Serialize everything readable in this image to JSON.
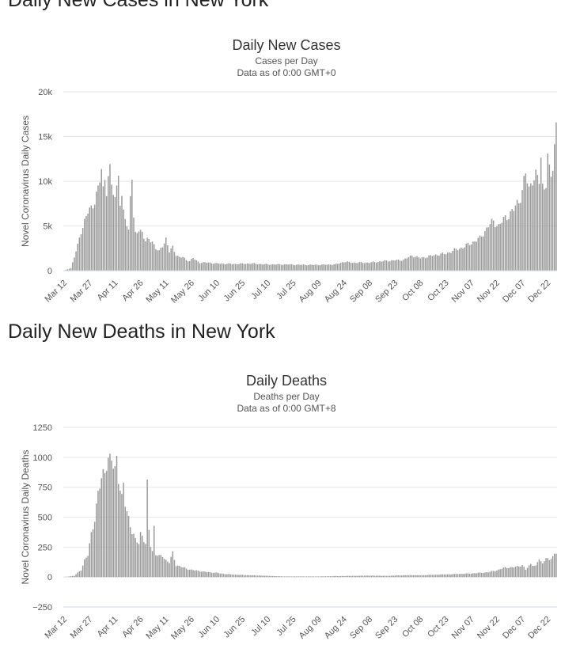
{
  "sections": [
    {
      "heading": "Daily New Cases in New York"
    },
    {
      "heading": "Daily New Deaths in New York"
    }
  ],
  "chart_data": [
    {
      "type": "bar",
      "title": "Daily New Cases",
      "subtitle_1": "Cases per Day",
      "subtitle_2": "Data as of 0:00 GMT+0",
      "ylabel": "Novel Coronavirus Daily Cases",
      "ylim": [
        0,
        20000
      ],
      "yticks": [
        0,
        5000,
        10000,
        15000,
        20000
      ],
      "ytick_labels": [
        "0",
        "5k",
        "10k",
        "15k",
        "20k"
      ],
      "xtick_labels": [
        "Mar 12",
        "Mar 27",
        "Apr 11",
        "Apr 26",
        "May 11",
        "May 26",
        "Jun 10",
        "Jun 25",
        "Jul 10",
        "Jul 25",
        "Aug 09",
        "Aug 24",
        "Sep 08",
        "Sep 23",
        "Oct 08",
        "Oct 23",
        "Nov 07",
        "Nov 22",
        "Dec 07",
        "Dec 22"
      ],
      "x_start": "Mar 12",
      "num_days": 291,
      "series_anchors": [
        [
          0,
          20
        ],
        [
          4,
          300
        ],
        [
          6,
          1500
        ],
        [
          8,
          2800
        ],
        [
          10,
          4500
        ],
        [
          12,
          5500
        ],
        [
          14,
          6500
        ],
        [
          16,
          7000
        ],
        [
          18,
          8000
        ],
        [
          20,
          9000
        ],
        [
          21,
          10000
        ],
        [
          22,
          11300
        ],
        [
          23,
          9000
        ],
        [
          24,
          10500
        ],
        [
          25,
          9200
        ],
        [
          26,
          10500
        ],
        [
          27,
          11000
        ],
        [
          28,
          9500
        ],
        [
          29,
          8700
        ],
        [
          30,
          8000
        ],
        [
          31,
          9500
        ],
        [
          32,
          11600
        ],
        [
          33,
          7500
        ],
        [
          34,
          7700
        ],
        [
          35,
          6500
        ],
        [
          36,
          6000
        ],
        [
          37,
          5000
        ],
        [
          38,
          4500
        ],
        [
          39,
          8800
        ],
        [
          40,
          10800
        ],
        [
          41,
          5600
        ],
        [
          42,
          4000
        ],
        [
          44,
          4600
        ],
        [
          46,
          4400
        ],
        [
          48,
          3200
        ],
        [
          50,
          3500
        ],
        [
          52,
          3300
        ],
        [
          54,
          2500
        ],
        [
          56,
          2100
        ],
        [
          58,
          2800
        ],
        [
          60,
          3600
        ],
        [
          62,
          2100
        ],
        [
          64,
          2600
        ],
        [
          66,
          1800
        ],
        [
          68,
          1500
        ],
        [
          70,
          1500
        ],
        [
          72,
          1200
        ],
        [
          74,
          1100
        ],
        [
          76,
          1400
        ],
        [
          78,
          1100
        ],
        [
          80,
          900
        ],
        [
          85,
          900
        ],
        [
          90,
          800
        ],
        [
          100,
          750
        ],
        [
          110,
          800
        ],
        [
          120,
          700
        ],
        [
          130,
          700
        ],
        [
          140,
          650
        ],
        [
          150,
          650
        ],
        [
          160,
          700
        ],
        [
          165,
          1000
        ],
        [
          170,
          900
        ],
        [
          180,
          900
        ],
        [
          190,
          1100
        ],
        [
          200,
          1200
        ],
        [
          205,
          1700
        ],
        [
          210,
          1400
        ],
        [
          215,
          1600
        ],
        [
          220,
          1800
        ],
        [
          225,
          1900
        ],
        [
          230,
          2300
        ],
        [
          235,
          2600
        ],
        [
          240,
          3100
        ],
        [
          245,
          3600
        ],
        [
          250,
          5000
        ],
        [
          253,
          5500
        ],
        [
          256,
          5000
        ],
        [
          260,
          5900
        ],
        [
          265,
          6800
        ],
        [
          268,
          7800
        ],
        [
          270,
          9000
        ],
        [
          272,
          10800
        ],
        [
          274,
          9000
        ],
        [
          276,
          10500
        ],
        [
          278,
          10500
        ],
        [
          280,
          10000
        ],
        [
          281,
          12500
        ],
        [
          282,
          9500
        ],
        [
          284,
          9900
        ],
        [
          285,
          12400
        ],
        [
          286,
          11000
        ],
        [
          287,
          10700
        ],
        [
          288,
          11500
        ],
        [
          289,
          13800
        ],
        [
          290,
          17000
        ]
      ]
    },
    {
      "type": "bar",
      "title": "Daily Deaths",
      "subtitle_1": "Deaths per Day",
      "subtitle_2": "Data as of 0:00 GMT+8",
      "ylabel": "Novel Coronavirus Daily Deaths",
      "ylim": [
        -250,
        1250
      ],
      "yticks": [
        -250,
        0,
        250,
        500,
        750,
        1000,
        1250
      ],
      "ytick_labels": [
        "−250",
        "0",
        "250",
        "500",
        "750",
        "1000",
        "1250"
      ],
      "xtick_labels": [
        "Mar 12",
        "Mar 27",
        "Apr 11",
        "Apr 26",
        "May 11",
        "May 26",
        "Jun 10",
        "Jun 25",
        "Jul 10",
        "Jul 25",
        "Aug 09",
        "Aug 24",
        "Sep 08",
        "Sep 23",
        "Oct 08",
        "Oct 23",
        "Nov 07",
        "Nov 22",
        "Dec 07",
        "Dec 22"
      ],
      "x_start": "Mar 12",
      "num_days": 291,
      "series_anchors": [
        [
          0,
          0
        ],
        [
          6,
          10
        ],
        [
          10,
          60
        ],
        [
          12,
          140
        ],
        [
          14,
          180
        ],
        [
          16,
          360
        ],
        [
          18,
          500
        ],
        [
          20,
          680
        ],
        [
          22,
          820
        ],
        [
          24,
          900
        ],
        [
          25,
          980
        ],
        [
          26,
          990
        ],
        [
          27,
          950
        ],
        [
          28,
          960
        ],
        [
          30,
          900
        ],
        [
          31,
          1010
        ],
        [
          32,
          850
        ],
        [
          34,
          640
        ],
        [
          35,
          750
        ],
        [
          36,
          610
        ],
        [
          38,
          500
        ],
        [
          40,
          380
        ],
        [
          42,
          300
        ],
        [
          44,
          290
        ],
        [
          45,
          370
        ],
        [
          46,
          350
        ],
        [
          47,
          310
        ],
        [
          48,
          270
        ],
        [
          49,
          740
        ],
        [
          50,
          390
        ],
        [
          51,
          270
        ],
        [
          52,
          220
        ],
        [
          53,
          420
        ],
        [
          54,
          190
        ],
        [
          56,
          170
        ],
        [
          58,
          180
        ],
        [
          60,
          140
        ],
        [
          62,
          120
        ],
        [
          64,
          200
        ],
        [
          66,
          100
        ],
        [
          70,
          80
        ],
        [
          75,
          60
        ],
        [
          80,
          50
        ],
        [
          85,
          40
        ],
        [
          90,
          35
        ],
        [
          95,
          25
        ],
        [
          100,
          20
        ],
        [
          110,
          15
        ],
        [
          120,
          10
        ],
        [
          130,
          5
        ],
        [
          140,
          5
        ],
        [
          150,
          5
        ],
        [
          160,
          8
        ],
        [
          170,
          10
        ],
        [
          180,
          12
        ],
        [
          190,
          10
        ],
        [
          200,
          15
        ],
        [
          210,
          15
        ],
        [
          220,
          20
        ],
        [
          230,
          25
        ],
        [
          240,
          30
        ],
        [
          250,
          40
        ],
        [
          256,
          60
        ],
        [
          260,
          80
        ],
        [
          265,
          80
        ],
        [
          270,
          100
        ],
        [
          272,
          60
        ],
        [
          275,
          110
        ],
        [
          278,
          90
        ],
        [
          280,
          150
        ],
        [
          282,
          110
        ],
        [
          284,
          170
        ],
        [
          286,
          130
        ],
        [
          288,
          180
        ],
        [
          290,
          200
        ]
      ]
    }
  ]
}
